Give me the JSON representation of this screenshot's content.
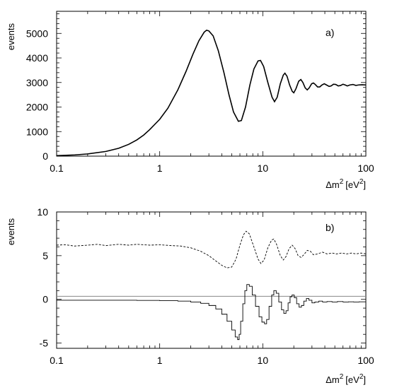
{
  "chart_data": [
    {
      "type": "line",
      "panel_label": "a)",
      "ylabel": "events",
      "xlabel_base": "Δm",
      "xlabel_exp": "2",
      "xlabel_unit_pre": "[eV",
      "xlabel_unit_exp": "2",
      "xlabel_unit_post": "]",
      "xscale": "log",
      "xlim": [
        0.1,
        100
      ],
      "ylim": [
        0,
        5900
      ],
      "x_ticks": [
        0.1,
        1,
        10,
        100
      ],
      "x_tick_labels": [
        "0.1",
        "1",
        "10",
        "100"
      ],
      "y_ticks": [
        0,
        1000,
        2000,
        3000,
        4000,
        5000
      ],
      "y_tick_labels": [
        "0",
        "1000",
        "2000",
        "3000",
        "4000",
        "5000"
      ],
      "series": [
        {
          "style": "solid",
          "points": [
            [
              0.1,
              20
            ],
            [
              0.15,
              50
            ],
            [
              0.2,
              90
            ],
            [
              0.3,
              190
            ],
            [
              0.4,
              320
            ],
            [
              0.5,
              480
            ],
            [
              0.6,
              660
            ],
            [
              0.7,
              860
            ],
            [
              0.8,
              1080
            ],
            [
              1.0,
              1500
            ],
            [
              1.2,
              1950
            ],
            [
              1.5,
              2700
            ],
            [
              1.8,
              3450
            ],
            [
              2.1,
              4150
            ],
            [
              2.4,
              4700
            ],
            [
              2.7,
              5050
            ],
            [
              2.85,
              5130
            ],
            [
              3.0,
              5100
            ],
            [
              3.3,
              4900
            ],
            [
              3.7,
              4300
            ],
            [
              4.2,
              3400
            ],
            [
              4.7,
              2500
            ],
            [
              5.2,
              1800
            ],
            [
              5.8,
              1420
            ],
            [
              6.2,
              1450
            ],
            [
              6.8,
              2000
            ],
            [
              7.5,
              2900
            ],
            [
              8.2,
              3550
            ],
            [
              9.0,
              3880
            ],
            [
              9.5,
              3900
            ],
            [
              10.2,
              3650
            ],
            [
              11.2,
              3000
            ],
            [
              12.3,
              2400
            ],
            [
              13.0,
              2220
            ],
            [
              13.8,
              2400
            ],
            [
              14.8,
              2950
            ],
            [
              15.8,
              3300
            ],
            [
              16.4,
              3380
            ],
            [
              17.2,
              3250
            ],
            [
              18.2,
              2900
            ],
            [
              19.3,
              2640
            ],
            [
              20.0,
              2580
            ],
            [
              21.0,
              2750
            ],
            [
              22.3,
              3050
            ],
            [
              23.4,
              3120
            ],
            [
              24.5,
              3000
            ],
            [
              25.8,
              2780
            ],
            [
              27.0,
              2700
            ],
            [
              28.2,
              2780
            ],
            [
              29.8,
              2950
            ],
            [
              31.0,
              2980
            ],
            [
              32.3,
              2920
            ],
            [
              34.0,
              2820
            ],
            [
              35.7,
              2820
            ],
            [
              37.5,
              2900
            ],
            [
              39.5,
              2950
            ],
            [
              41.5,
              2900
            ],
            [
              44.0,
              2840
            ],
            [
              46.0,
              2860
            ],
            [
              48.5,
              2930
            ],
            [
              51.0,
              2920
            ],
            [
              54.0,
              2860
            ],
            [
              57.0,
              2880
            ],
            [
              60.0,
              2930
            ],
            [
              63.0,
              2900
            ],
            [
              66.0,
              2860
            ],
            [
              70.0,
              2900
            ],
            [
              75.0,
              2920
            ],
            [
              80.0,
              2880
            ],
            [
              85.0,
              2900
            ],
            [
              92.0,
              2910
            ],
            [
              100.0,
              2900
            ]
          ]
        }
      ]
    },
    {
      "type": "line",
      "panel_label": "b)",
      "ylabel": "events",
      "xlabel_base": "Δm",
      "xlabel_exp": "2",
      "xlabel_unit_pre": "[eV",
      "xlabel_unit_exp": "2",
      "xlabel_unit_post": "]",
      "xscale": "log",
      "xlim": [
        0.1,
        100
      ],
      "ylim": [
        -5.6,
        10
      ],
      "x_ticks": [
        0.1,
        1,
        10,
        100
      ],
      "x_tick_labels": [
        "0.1",
        "1",
        "10",
        "100"
      ],
      "y_ticks": [
        -5,
        0,
        5,
        10
      ],
      "y_tick_labels": [
        "-5",
        "0",
        "5",
        "10"
      ],
      "reference_line_y": 0.35,
      "series": [
        {
          "style": "dashed",
          "points": [
            [
              0.1,
              6.2
            ],
            [
              0.12,
              6.25
            ],
            [
              0.15,
              6.1
            ],
            [
              0.2,
              6.2
            ],
            [
              0.25,
              6.3
            ],
            [
              0.3,
              6.15
            ],
            [
              0.4,
              6.3
            ],
            [
              0.5,
              6.2
            ],
            [
              0.6,
              6.3
            ],
            [
              0.8,
              6.2
            ],
            [
              1.0,
              6.25
            ],
            [
              1.3,
              6.15
            ],
            [
              1.6,
              6.1
            ],
            [
              2.0,
              5.9
            ],
            [
              2.5,
              5.5
            ],
            [
              3.0,
              5.0
            ],
            [
              3.5,
              4.4
            ],
            [
              4.0,
              3.9
            ],
            [
              4.5,
              3.6
            ],
            [
              5.0,
              3.7
            ],
            [
              5.5,
              4.6
            ],
            [
              6.0,
              6.2
            ],
            [
              6.5,
              7.4
            ],
            [
              6.9,
              7.8
            ],
            [
              7.4,
              7.5
            ],
            [
              8.2,
              6.0
            ],
            [
              9.0,
              4.6
            ],
            [
              9.6,
              4.1
            ],
            [
              10.3,
              4.5
            ],
            [
              11.2,
              5.9
            ],
            [
              12.2,
              6.8
            ],
            [
              12.8,
              6.9
            ],
            [
              13.6,
              6.3
            ],
            [
              14.8,
              5.0
            ],
            [
              15.8,
              4.5
            ],
            [
              16.8,
              4.9
            ],
            [
              18.0,
              5.8
            ],
            [
              19.3,
              6.2
            ],
            [
              20.6,
              5.8
            ],
            [
              22.0,
              5.0
            ],
            [
              23.5,
              4.8
            ],
            [
              25.0,
              5.1
            ],
            [
              27.0,
              5.6
            ],
            [
              29.0,
              5.5
            ],
            [
              31.0,
              5.1
            ],
            [
              34.0,
              5.2
            ],
            [
              38.0,
              5.4
            ],
            [
              42.0,
              5.2
            ],
            [
              47.0,
              5.3
            ],
            [
              52.0,
              5.2
            ],
            [
              58.0,
              5.3
            ],
            [
              65.0,
              5.2
            ],
            [
              72.0,
              5.3
            ],
            [
              80.0,
              5.2
            ],
            [
              90.0,
              5.3
            ],
            [
              100.0,
              5.2
            ]
          ]
        },
        {
          "style": "step",
          "points": [
            [
              0.1,
              -0.1
            ],
            [
              0.3,
              -0.1
            ],
            [
              0.6,
              -0.12
            ],
            [
              1.0,
              -0.15
            ],
            [
              1.5,
              -0.2
            ],
            [
              2.0,
              -0.3
            ],
            [
              2.5,
              -0.45
            ],
            [
              3.0,
              -0.7
            ],
            [
              3.5,
              -1.1
            ],
            [
              4.0,
              -1.7
            ],
            [
              4.5,
              -2.5
            ],
            [
              5.0,
              -3.5
            ],
            [
              5.4,
              -4.3
            ],
            [
              5.7,
              -4.6
            ],
            [
              5.9,
              -4.0
            ],
            [
              6.1,
              -2.5
            ],
            [
              6.4,
              -0.5
            ],
            [
              6.7,
              1.0
            ],
            [
              7.0,
              1.7
            ],
            [
              7.4,
              1.5
            ],
            [
              7.9,
              0.5
            ],
            [
              8.5,
              -0.8
            ],
            [
              9.2,
              -2.0
            ],
            [
              9.8,
              -2.6
            ],
            [
              10.4,
              -2.8
            ],
            [
              10.9,
              -2.3
            ],
            [
              11.5,
              -0.8
            ],
            [
              12.2,
              0.5
            ],
            [
              12.8,
              1.0
            ],
            [
              13.5,
              0.7
            ],
            [
              14.3,
              -0.3
            ],
            [
              15.2,
              -1.2
            ],
            [
              16.0,
              -1.6
            ],
            [
              16.8,
              -1.3
            ],
            [
              17.6,
              -0.4
            ],
            [
              18.4,
              0.3
            ],
            [
              19.2,
              0.5
            ],
            [
              20.2,
              0.2
            ],
            [
              21.3,
              -0.5
            ],
            [
              22.5,
              -0.9
            ],
            [
              23.7,
              -0.7
            ],
            [
              25.0,
              -0.2
            ],
            [
              26.5,
              0.1
            ],
            [
              28.0,
              -0.1
            ],
            [
              30.0,
              -0.4
            ],
            [
              32.0,
              -0.3
            ],
            [
              35.0,
              -0.2
            ],
            [
              38.0,
              -0.3
            ],
            [
              42.0,
              -0.25
            ],
            [
              47.0,
              -0.3
            ],
            [
              53.0,
              -0.25
            ],
            [
              60.0,
              -0.3
            ],
            [
              68.0,
              -0.28
            ],
            [
              76.0,
              -0.3
            ],
            [
              86.0,
              -0.28
            ],
            [
              100.0,
              -0.3
            ]
          ]
        }
      ]
    }
  ]
}
